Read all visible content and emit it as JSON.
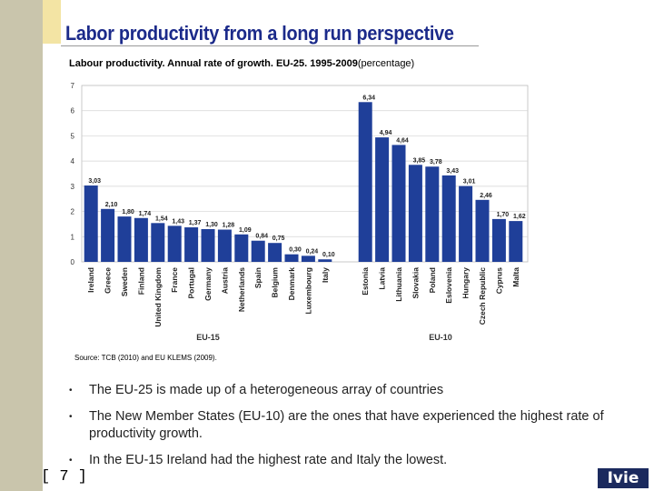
{
  "slide": {
    "title": "Labor productivity from a long run perspective",
    "chart_title": "Labour productivity. Annual rate of growth. EU-25. 1995-2009",
    "chart_unit": "(percentage)",
    "source": "Source: TCB (2010) and EU KLEMS (2009).",
    "bullets": [
      "The EU-25 is made up of a heterogeneous array of countries",
      "The New Member States (EU-10) are the ones that have experienced the highest rate of productivity growth.",
      "In the EU-15 Ireland had the highest rate and Italy the lowest."
    ],
    "bullet_marker": "•",
    "page_number": "[ 7 ]",
    "logo": "Ivie"
  },
  "chart_data": {
    "type": "bar",
    "title": "Labour productivity. Annual rate of growth. EU-25. 1995-2009",
    "ylabel": "",
    "xlabel": "",
    "ylim": [
      0,
      7
    ],
    "yticks": [
      "0",
      "1",
      "2",
      "3",
      "4",
      "5",
      "6",
      "7"
    ],
    "grid": true,
    "color": "#1f3f99",
    "groups": [
      {
        "name": "EU-15",
        "categories": [
          "Ireland",
          "Greece",
          "Sweden",
          "Finland",
          "United Kingdom",
          "France",
          "Portugal",
          "Germany",
          "Austria",
          "Netherlands",
          "Spain",
          "Belgium",
          "Denmark",
          "Luxembourg",
          "Italy"
        ],
        "values": [
          3.03,
          2.1,
          1.8,
          1.74,
          1.54,
          1.43,
          1.37,
          1.3,
          1.28,
          1.09,
          0.84,
          0.75,
          0.3,
          0.24,
          0.1
        ],
        "labels": [
          "3,03",
          "2,10",
          "1,80",
          "1,74",
          "1,54",
          "1,43",
          "1,37",
          "1,30",
          "1,28",
          "1,09",
          "0,84",
          "0,75",
          "0,30",
          "0,24",
          "0,10"
        ]
      },
      {
        "name": "EU-10",
        "categories": [
          "Estonia",
          "Latvia",
          "Lithuania",
          "Slovakia",
          "Poland",
          "Eslovenia",
          "Hungary",
          "Czech Republic",
          "Cyprus",
          "Malta"
        ],
        "values": [
          6.34,
          4.94,
          4.64,
          3.85,
          3.78,
          3.43,
          3.01,
          2.46,
          1.7,
          1.62
        ],
        "labels": [
          "6,34",
          "4,94",
          "4,64",
          "3,85",
          "3,78",
          "3,43",
          "3,01",
          "2,46",
          "1,70",
          "1,62"
        ]
      }
    ]
  }
}
